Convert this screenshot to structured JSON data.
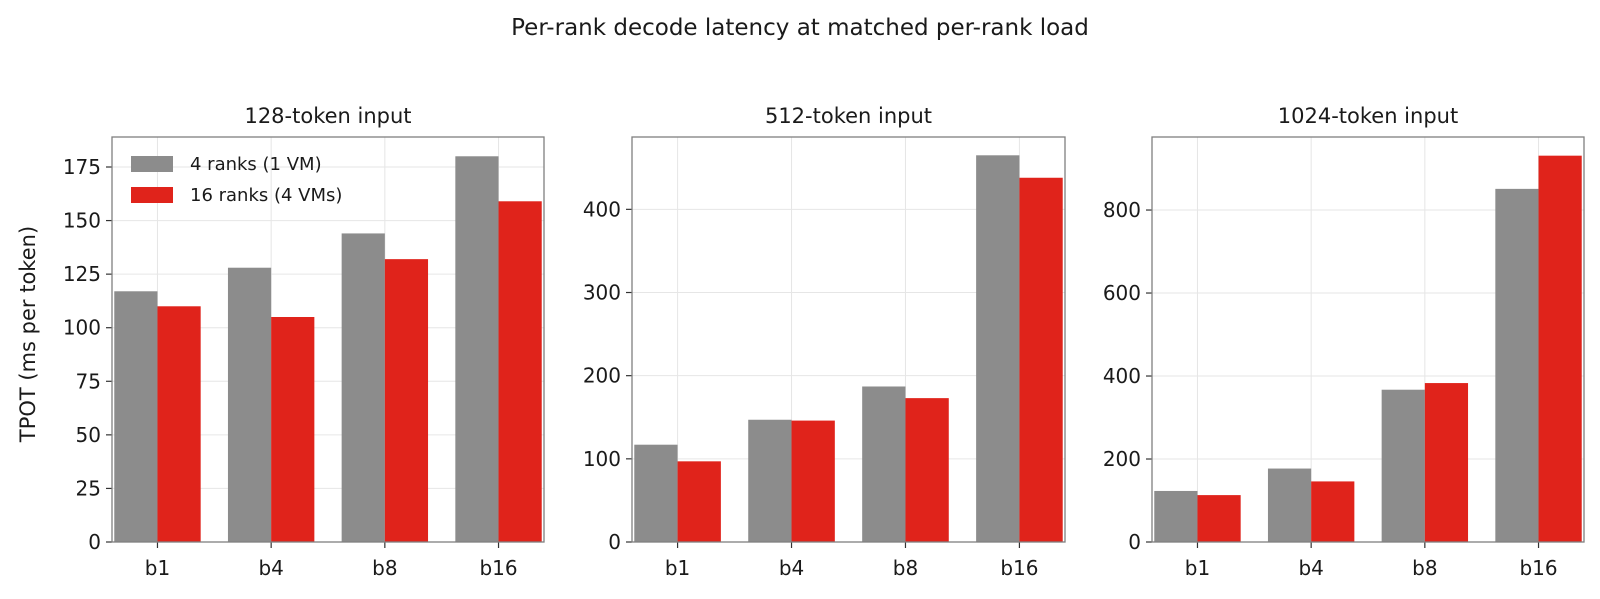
{
  "title": "Per-rank decode latency at matched per-rank load",
  "ylabel": "TPOT (ms per token)",
  "colors": {
    "4 ranks (1 VM)": "#8c8c8c",
    "16 ranks (4 VMs)": "#e0231b"
  },
  "legend": {
    "placement": "upper-left of first panel",
    "entries": [
      "4 ranks (1 VM)",
      "16 ranks (4 VMs)"
    ]
  },
  "chart_data": [
    {
      "type": "bar",
      "title": "128-token input",
      "categories": [
        "b1",
        "b4",
        "b8",
        "b16"
      ],
      "series": [
        {
          "name": "4 ranks (1 VM)",
          "values": [
            117,
            128,
            144,
            180
          ]
        },
        {
          "name": "16 ranks (4 VMs)",
          "values": [
            110,
            105,
            132,
            159
          ]
        }
      ],
      "ylim": [
        0,
        189
      ],
      "yticks": [
        0,
        25,
        50,
        75,
        100,
        125,
        150,
        175
      ],
      "grid": true
    },
    {
      "type": "bar",
      "title": "512-token input",
      "categories": [
        "b1",
        "b4",
        "b8",
        "b16"
      ],
      "series": [
        {
          "name": "4 ranks (1 VM)",
          "values": [
            117,
            147,
            187,
            465
          ]
        },
        {
          "name": "16 ranks (4 VMs)",
          "values": [
            97,
            146,
            173,
            438
          ]
        }
      ],
      "ylim": [
        0,
        487
      ],
      "yticks": [
        0,
        100,
        200,
        300,
        400
      ],
      "grid": true
    },
    {
      "type": "bar",
      "title": "1024-token input",
      "categories": [
        "b1",
        "b4",
        "b8",
        "b16"
      ],
      "series": [
        {
          "name": "4 ranks (1 VM)",
          "values": [
            123,
            177,
            367,
            851
          ]
        },
        {
          "name": "16 ranks (4 VMs)",
          "values": [
            113,
            146,
            383,
            931
          ]
        }
      ],
      "ylim": [
        0,
        976
      ],
      "yticks": [
        0,
        200,
        400,
        600,
        800
      ],
      "grid": true
    }
  ]
}
